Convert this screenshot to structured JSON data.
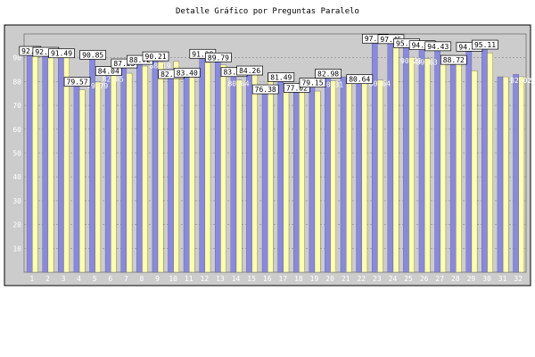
{
  "chart_data": {
    "type": "bar",
    "title": "Detalle Gráfico por Preguntas Paralelo",
    "xlabel": "",
    "ylabel": "",
    "ylim": [
      0,
      100
    ],
    "yticks": [
      10,
      20,
      30,
      40,
      50,
      60,
      70,
      80,
      90
    ],
    "grid": true,
    "categories": [
      "1",
      "2",
      "3",
      "4",
      "5",
      "6",
      "7",
      "8",
      "9",
      "10",
      "11",
      "12",
      "13",
      "14",
      "15",
      "16",
      "17",
      "18",
      "19",
      "20",
      "21",
      "22",
      "23",
      "24",
      "25",
      "26",
      "27",
      "28",
      "29",
      "30",
      "31",
      "32"
    ],
    "series": [
      {
        "color": "#8888e6",
        "values": [
          92.5,
          92.11,
          91.49,
          79.57,
          90.85,
          84.04,
          87.23,
          88.72,
          90.21,
          82.77,
          83.4,
          91.28,
          89.79,
          83.62,
          84.26,
          76.38,
          81.49,
          77.02,
          79.15,
          82.98,
          82.0,
          80.64,
          97.66,
          97.45,
          95.74,
          94.89,
          94.43,
          88.72,
          94.26,
          95.11,
          82.0,
          83.0
        ],
        "labels": [
          "92.5",
          "92.11",
          "91.49",
          "79.57",
          "90.85",
          "84.04",
          "87.23",
          "88.72",
          "90.21",
          "82.77",
          "83.40",
          "91.28",
          "89.79",
          "83.62",
          "84.26",
          "76.38",
          "81.49",
          "77.02",
          "79.15",
          "82.98",
          "",
          "80.64",
          "97.66",
          "97.45",
          "95.74",
          "94.89",
          "94.43",
          "88.72",
          "94.26",
          "95.11",
          "",
          ""
        ]
      },
      {
        "color": "#ffffa8",
        "values": [
          91.0,
          90.6,
          90.0,
          76.5,
          79.79,
          82.65,
          83.5,
          86.5,
          88.19,
          88.5,
          83.5,
          88.0,
          87.0,
          80.64,
          86.5,
          83.5,
          79.0,
          80.0,
          76.0,
          80.31,
          82.0,
          82.0,
          80.64,
          96.0,
          90.21,
          89.63,
          91.0,
          90.0,
          84.5,
          92.0,
          82.0,
          82.02
        ],
        "labels": [
          "",
          "",
          "",
          "",
          "79.79",
          "82.65",
          "",
          "",
          "88.19",
          "",
          "",
          "",
          "",
          "80.64",
          "",
          "",
          "",
          "",
          "",
          "80.31",
          "",
          "",
          "80.64",
          "",
          "90.21",
          "89.63",
          "",
          "",
          "",
          "",
          "",
          "82.02"
        ]
      }
    ]
  }
}
